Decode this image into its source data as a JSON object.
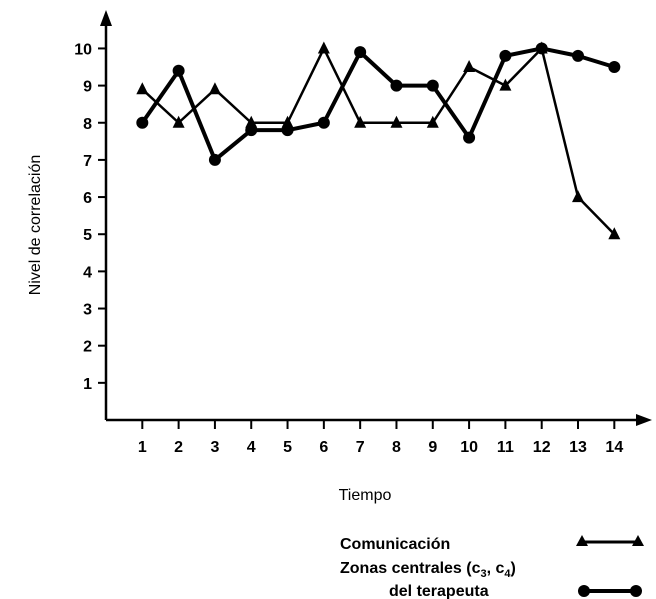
{
  "chart_data": {
    "type": "line",
    "xlabel": "Tiempo",
    "ylabel": "Nivel de correlación",
    "x": [
      1,
      2,
      3,
      4,
      5,
      6,
      7,
      8,
      9,
      10,
      11,
      12,
      13,
      14
    ],
    "xlim": [
      0,
      14.9
    ],
    "ylim": [
      0,
      10.9
    ],
    "y_ticks": [
      1,
      2,
      3,
      4,
      5,
      6,
      7,
      8,
      9,
      10
    ],
    "grid": false,
    "legend_position": "bottom-right",
    "series": [
      {
        "name": "Comunicación",
        "marker": "triangle",
        "values": [
          8.9,
          8.0,
          8.9,
          8.0,
          8.0,
          10.0,
          8.0,
          8.0,
          8.0,
          9.5,
          9.0,
          10.0,
          6.0,
          5.0
        ]
      },
      {
        "name": "Zonas centrales (c3, c4) del terapeuta",
        "marker": "circle",
        "values": [
          8.0,
          9.4,
          7.0,
          7.8,
          7.8,
          8.0,
          9.9,
          9.0,
          9.0,
          7.6,
          9.8,
          10.0,
          9.8,
          9.5
        ]
      }
    ],
    "legend": {
      "series1_label": "Comunicación",
      "series2_line1_prefix": "Zonas centrales (c",
      "series2_sub1": "3",
      "series2_mid": ", c",
      "series2_sub2": "4",
      "series2_suffix": ")",
      "series2_line2": "del terapeuta"
    }
  }
}
